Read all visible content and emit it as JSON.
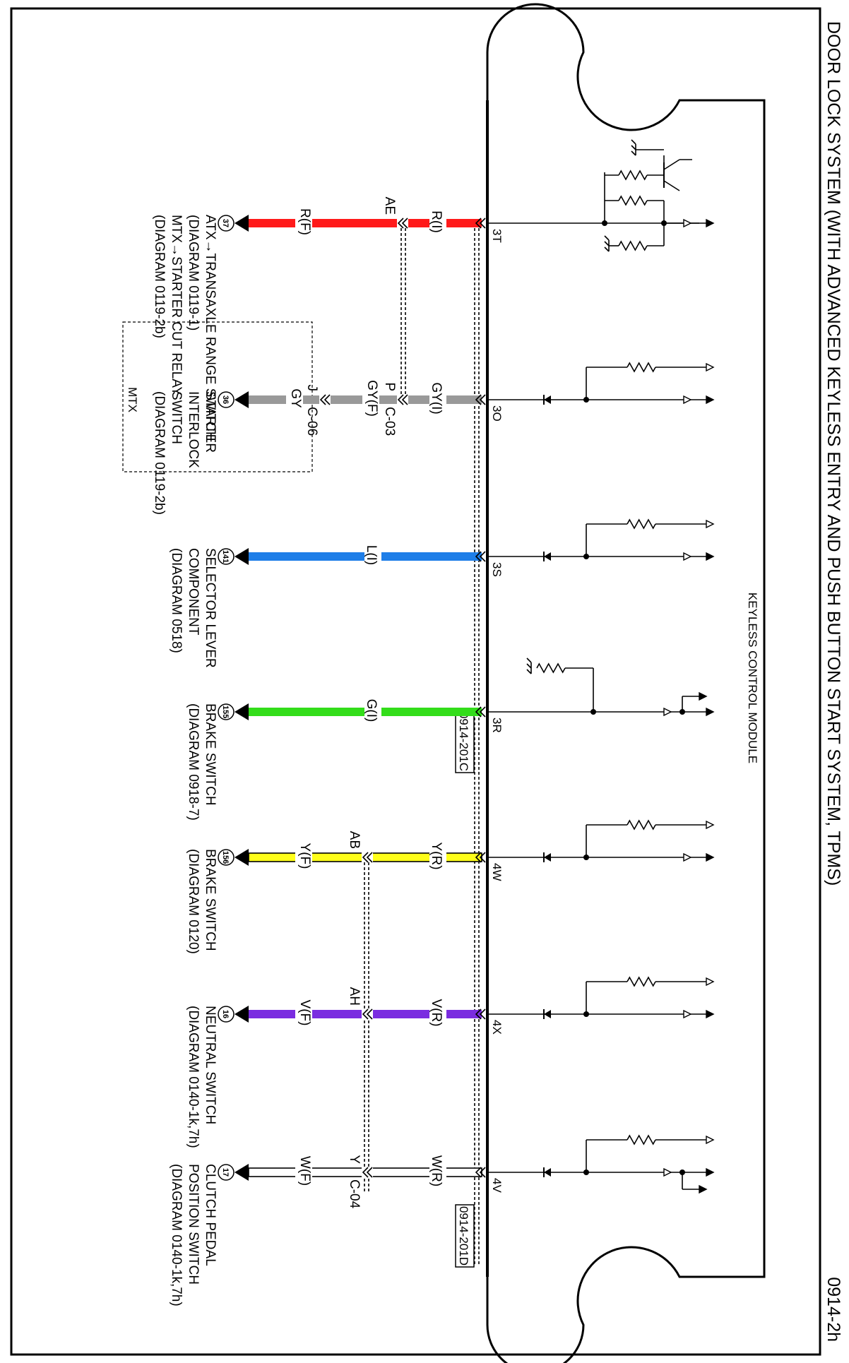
{
  "title": "DOOR LOCK SYSTEM (WITH ADVANCED KEYLESS ENTRY AND PUSH BUTTON START SYSTEM, TPMS)",
  "page_code": "0914-2h",
  "module_label": "KEYLESS CONTROL MODULE",
  "harness_connectors": [
    {
      "id": "0914-201C"
    },
    {
      "id": "0914-201D"
    }
  ],
  "circuits": [
    {
      "terminal": "3T",
      "color": "#ff1a1a",
      "stroke": "#ff1a1a",
      "wire_inner": "R(I)",
      "joint": "AE",
      "wire_outer": "R(F)",
      "circle": "37",
      "desc": [
        "ATX→TRANSAXLE RANGE SWITCH",
        "(DIAGRAM 0119-1)",
        "MTX→STARTER CUT RELAY",
        "(DIAGRAM 0119-2b)"
      ]
    },
    {
      "terminal": "3O",
      "color": "#999999",
      "stroke": "#999999",
      "wire_inner": "GY(I)",
      "connector1": "C-03",
      "pin1": "P",
      "wire_mid": "GY(F)",
      "connector2": "C-06",
      "pin2": "J",
      "wire_outer": "GY",
      "circle": "36",
      "desc": [
        "STARTER",
        "INTERLOCK",
        "SWITCH",
        "(DIAGRAM 0119-2b)"
      ],
      "group_label": "MTX"
    },
    {
      "terminal": "3S",
      "color": "#1e7ee8",
      "stroke": "#1e7ee8",
      "wire_inner": "L(I)",
      "circle": "141",
      "desc": [
        "SELECTOR LEVER",
        "COMPONENT",
        "(DIAGRAM 0518)"
      ]
    },
    {
      "terminal": "3R",
      "color": "#33dd1a",
      "stroke": "#33dd1a",
      "wire_inner": "G(I)",
      "circle": "155",
      "desc": [
        "BRAKE SWITCH",
        "(DIAGRAM 0918-7)"
      ]
    },
    {
      "terminal": "4W",
      "color": "#ffff1a",
      "stroke": "#000000",
      "wire_inner": "Y(R)",
      "joint": "AB",
      "wire_outer": "Y(F)",
      "circle": "156",
      "desc": [
        "BRAKE SWITCH",
        "(DIAGRAM 0120)"
      ]
    },
    {
      "terminal": "4X",
      "color": "#7a2ce0",
      "stroke": "#7a2ce0",
      "wire_inner": "V(R)",
      "joint": "AH",
      "wire_outer": "V(F)",
      "circle": "16",
      "desc": [
        "NEUTRAL SWITCH",
        "(DIAGRAM 0140-1k,7h)"
      ]
    },
    {
      "terminal": "4V",
      "color": "#ffffff",
      "stroke": "#000000",
      "wire_inner": "W(R)",
      "connector1": "C-04",
      "pin1": "Y",
      "wire_outer": "W(F)",
      "circle": "17",
      "desc": [
        "CLUTCH PEDAL",
        "POSITION SWITCH",
        "(DIAGRAM 0140-1k,7h)"
      ]
    }
  ]
}
